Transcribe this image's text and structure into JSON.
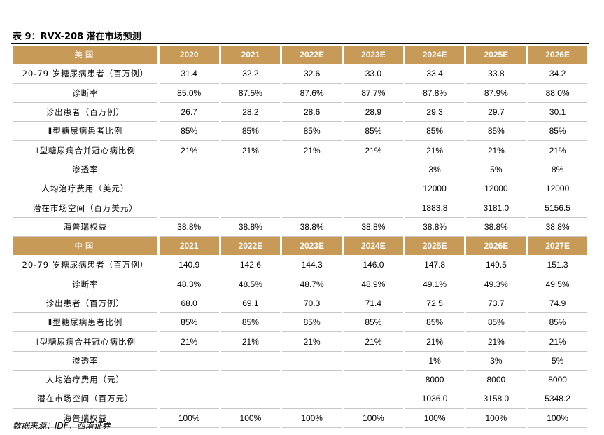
{
  "title": "表 9：RVX-208 潜在市场预测",
  "source": "数据来源：IDF，西南证券",
  "usa": {
    "region": "美国",
    "years": [
      "2020",
      "2021",
      "2022E",
      "2023E",
      "2024E",
      "2025E",
      "2026E"
    ],
    "rows": [
      {
        "label": "20-79 岁糖尿病患者（百万例）",
        "values": [
          "31.4",
          "32.2",
          "32.6",
          "33.0",
          "33.4",
          "33.8",
          "34.2"
        ]
      },
      {
        "label": "诊断率",
        "values": [
          "85.0%",
          "87.5%",
          "87.6%",
          "87.7%",
          "87.8%",
          "87.9%",
          "88.0%"
        ]
      },
      {
        "label": "诊出患者（百万例）",
        "values": [
          "26.7",
          "28.2",
          "28.6",
          "28.9",
          "29.3",
          "29.7",
          "30.1"
        ]
      },
      {
        "label": "Ⅱ型糖尿病患者比例",
        "values": [
          "85%",
          "85%",
          "85%",
          "85%",
          "85%",
          "85%",
          "85%"
        ]
      },
      {
        "label": "Ⅱ型糖尿病合并冠心病比例",
        "values": [
          "21%",
          "21%",
          "21%",
          "21%",
          "21%",
          "21%",
          "21%"
        ]
      },
      {
        "label": "渗透率",
        "values": [
          "",
          "",
          "",
          "",
          "3%",
          "5%",
          "8%"
        ]
      },
      {
        "label": "人均治疗费用（美元）",
        "values": [
          "",
          "",
          "",
          "",
          "12000",
          "12000",
          "12000"
        ]
      },
      {
        "label": "潜在市场空间（百万美元）",
        "values": [
          "",
          "",
          "",
          "",
          "1883.8",
          "3181.0",
          "5156.5"
        ]
      },
      {
        "label": "海普瑞权益",
        "values": [
          "38.8%",
          "38.8%",
          "38.8%",
          "38.8%",
          "38.8%",
          "38.8%",
          "38.8%"
        ]
      }
    ]
  },
  "china": {
    "region": "中国",
    "years": [
      "2021",
      "2022E",
      "2023E",
      "2024E",
      "2025E",
      "2026E",
      "2027E"
    ],
    "rows": [
      {
        "label": "20-79 岁糖尿病患者（百万例）",
        "values": [
          "140.9",
          "142.6",
          "144.3",
          "146.0",
          "147.8",
          "149.5",
          "151.3"
        ]
      },
      {
        "label": "诊断率",
        "values": [
          "48.3%",
          "48.5%",
          "48.7%",
          "48.9%",
          "49.1%",
          "49.3%",
          "49.5%"
        ]
      },
      {
        "label": "诊出患者（百万例）",
        "values": [
          "68.0",
          "69.1",
          "70.3",
          "71.4",
          "72.5",
          "73.7",
          "74.9"
        ]
      },
      {
        "label": "Ⅱ型糖尿病患者比例",
        "values": [
          "85%",
          "85%",
          "85%",
          "85%",
          "85%",
          "85%",
          "85%"
        ]
      },
      {
        "label": "Ⅱ型糖尿病合并冠心病比例",
        "values": [
          "21%",
          "21%",
          "21%",
          "21%",
          "21%",
          "21%",
          "21%"
        ]
      },
      {
        "label": "渗透率",
        "values": [
          "",
          "",
          "",
          "",
          "1%",
          "3%",
          "5%"
        ]
      },
      {
        "label": "人均治疗费用（元）",
        "values": [
          "",
          "",
          "",
          "",
          "8000",
          "8000",
          "8000"
        ]
      },
      {
        "label": "潜在市场空间（百万元）",
        "values": [
          "",
          "",
          "",
          "",
          "1036.0",
          "3158.0",
          "5348.2"
        ]
      },
      {
        "label": "海普瑞权益",
        "values": [
          "100%",
          "100%",
          "100%",
          "100%",
          "100%",
          "100%",
          "100%"
        ]
      }
    ]
  }
}
